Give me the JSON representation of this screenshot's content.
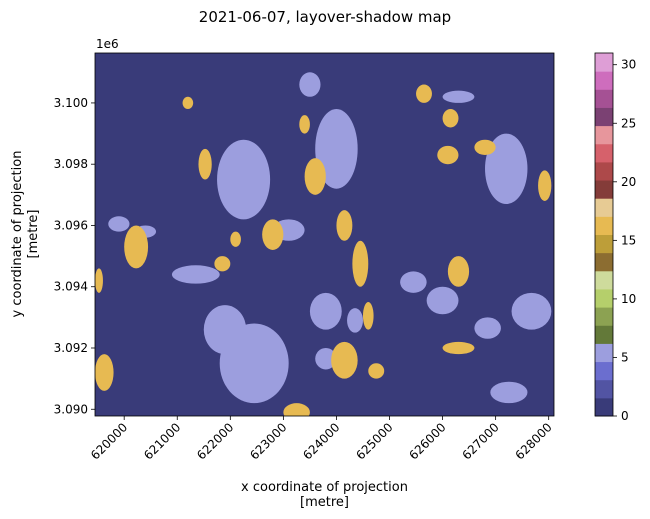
{
  "chart_data": {
    "type": "heatmap",
    "title": "2021-06-07, layover-shadow map",
    "xlabel_line1": "x coordinate of projection",
    "xlabel_line2": "[metre]",
    "ylabel_line1": "y coordinate of projection",
    "ylabel_line2": "[metre]",
    "y_offset_label": "1e6",
    "xlim": [
      619450,
      628100
    ],
    "ylim": [
      3.08978,
      3.10163
    ],
    "x_ticks": [
      620000,
      621000,
      622000,
      623000,
      624000,
      625000,
      626000,
      627000,
      628000
    ],
    "x_tick_labels": [
      "620000",
      "621000",
      "622000",
      "623000",
      "624000",
      "625000",
      "626000",
      "627000",
      "628000"
    ],
    "y_ticks": [
      3.09,
      3.092,
      3.094,
      3.096,
      3.098,
      3.1
    ],
    "y_tick_labels": [
      "3.090",
      "3.092",
      "3.094",
      "3.096",
      "3.098",
      "3.100"
    ],
    "colorbar": {
      "range": [
        0,
        31
      ],
      "ticks": [
        0,
        5,
        10,
        15,
        20,
        25,
        30
      ],
      "tick_labels": [
        "0",
        "5",
        "10",
        "15",
        "20",
        "25",
        "30"
      ],
      "colormap": "tab20b"
    },
    "background_value": 0,
    "background_color": "#393b79",
    "class_colors": {
      "shadow": "#9c9ede",
      "layover": "#e7ba52"
    },
    "regions": [
      {
        "class": "shadow",
        "x": [
          621750,
          622750
        ],
        "y": [
          3.0962,
          3.0988
        ]
      },
      {
        "class": "shadow",
        "x": [
          621800,
          623100
        ],
        "y": [
          3.0902,
          3.0928
        ]
      },
      {
        "class": "shadow",
        "x": [
          621500,
          622300
        ],
        "y": [
          3.0918,
          3.0934
        ]
      },
      {
        "class": "shadow",
        "x": [
          620900,
          621800
        ],
        "y": [
          3.0941,
          3.0947
        ]
      },
      {
        "class": "shadow",
        "x": [
          622800,
          623400
        ],
        "y": [
          3.0955,
          3.0962
        ]
      },
      {
        "class": "shadow",
        "x": [
          623600,
          624400
        ],
        "y": [
          3.0972,
          3.0998
        ]
      },
      {
        "class": "shadow",
        "x": [
          623300,
          623700
        ],
        "y": [
          3.1002,
          3.101
        ]
      },
      {
        "class": "shadow",
        "x": [
          623500,
          624100
        ],
        "y": [
          3.0926,
          3.0938
        ]
      },
      {
        "class": "shadow",
        "x": [
          623600,
          624000
        ],
        "y": [
          3.0913,
          3.092
        ]
      },
      {
        "class": "shadow",
        "x": [
          624200,
          624500
        ],
        "y": [
          3.0925,
          3.0933
        ]
      },
      {
        "class": "shadow",
        "x": [
          626800,
          627600
        ],
        "y": [
          3.0967,
          3.099
        ]
      },
      {
        "class": "shadow",
        "x": [
          627300,
          628050
        ],
        "y": [
          3.0926,
          3.0938
        ]
      },
      {
        "class": "shadow",
        "x": [
          625700,
          626300
        ],
        "y": [
          3.0931,
          3.094
        ]
      },
      {
        "class": "shadow",
        "x": [
          626600,
          627100
        ],
        "y": [
          3.0923,
          3.093
        ]
      },
      {
        "class": "shadow",
        "x": [
          626900,
          627600
        ],
        "y": [
          3.0902,
          3.0909
        ]
      },
      {
        "class": "shadow",
        "x": [
          625200,
          625700
        ],
        "y": [
          3.0938,
          3.0945
        ]
      },
      {
        "class": "shadow",
        "x": [
          619700,
          620100
        ],
        "y": [
          3.0958,
          3.0963
        ]
      },
      {
        "class": "shadow",
        "x": [
          626000,
          626600
        ],
        "y": [
          3.1,
          3.1004
        ]
      },
      {
        "class": "shadow",
        "x": [
          620200,
          620600
        ],
        "y": [
          3.0956,
          3.096
        ]
      },
      {
        "class": "layover",
        "x": [
          623400,
          623800
        ],
        "y": [
          3.097,
          3.0982
        ]
      },
      {
        "class": "layover",
        "x": [
          624000,
          624300
        ],
        "y": [
          3.0955,
          3.0965
        ]
      },
      {
        "class": "layover",
        "x": [
          624300,
          624600
        ],
        "y": [
          3.094,
          3.0955
        ]
      },
      {
        "class": "layover",
        "x": [
          624500,
          624700
        ],
        "y": [
          3.0926,
          3.0935
        ]
      },
      {
        "class": "layover",
        "x": [
          623900,
          624400
        ],
        "y": [
          3.091,
          3.0922
        ]
      },
      {
        "class": "layover",
        "x": [
          623000,
          623500
        ],
        "y": [
          3.0896,
          3.0902
        ]
      },
      {
        "class": "layover",
        "x": [
          622600,
          623000
        ],
        "y": [
          3.0952,
          3.0962
        ]
      },
      {
        "class": "layover",
        "x": [
          619450,
          619800
        ],
        "y": [
          3.0906,
          3.0918
        ]
      },
      {
        "class": "layover",
        "x": [
          620000,
          620450
        ],
        "y": [
          3.0946,
          3.096
        ]
      },
      {
        "class": "layover",
        "x": [
          619450,
          619600
        ],
        "y": [
          3.0938,
          3.0946
        ]
      },
      {
        "class": "layover",
        "x": [
          626100,
          626500
        ],
        "y": [
          3.094,
          3.095
        ]
      },
      {
        "class": "layover",
        "x": [
          625900,
          626300
        ],
        "y": [
          3.098,
          3.0986
        ]
      },
      {
        "class": "layover",
        "x": [
          626600,
          627000
        ],
        "y": [
          3.0983,
          3.0988
        ]
      },
      {
        "class": "layover",
        "x": [
          627800,
          628050
        ],
        "y": [
          3.0968,
          3.0978
        ]
      },
      {
        "class": "layover",
        "x": [
          626000,
          626600
        ],
        "y": [
          3.0918,
          3.0922
        ]
      },
      {
        "class": "layover",
        "x": [
          621400,
          621650
        ],
        "y": [
          3.0975,
          3.0985
        ]
      },
      {
        "class": "layover",
        "x": [
          622000,
          622200
        ],
        "y": [
          3.0953,
          3.0958
        ]
      },
      {
        "class": "layover",
        "x": [
          621700,
          622000
        ],
        "y": [
          3.0945,
          3.095
        ]
      },
      {
        "class": "layover",
        "x": [
          625500,
          625800
        ],
        "y": [
          3.1,
          3.1006
        ]
      },
      {
        "class": "layover",
        "x": [
          626000,
          626300
        ],
        "y": [
          3.0992,
          3.0998
        ]
      },
      {
        "class": "layover",
        "x": [
          624600,
          624900
        ],
        "y": [
          3.091,
          3.0915
        ]
      },
      {
        "class": "layover",
        "x": [
          621100,
          621300
        ],
        "y": [
          3.0998,
          3.1002
        ]
      },
      {
        "class": "layover",
        "x": [
          623300,
          623500
        ],
        "y": [
          3.099,
          3.0996
        ]
      }
    ]
  }
}
